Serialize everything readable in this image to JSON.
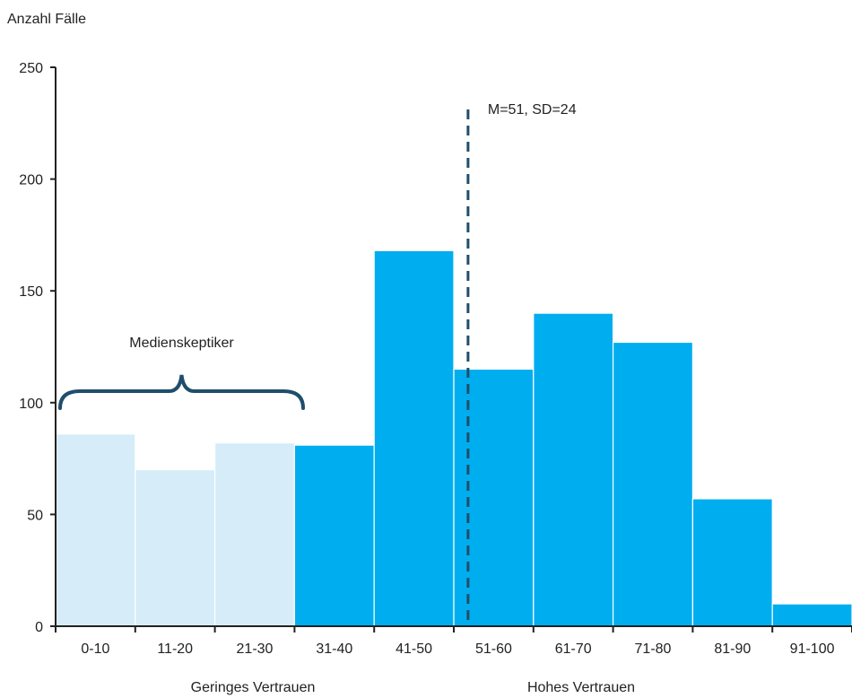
{
  "chart_data": {
    "type": "bar",
    "title": "",
    "ylabel": "Anzahl Fälle",
    "xlabel": "",
    "ylim": [
      0,
      250
    ],
    "yticks": [
      0,
      50,
      100,
      150,
      200,
      250
    ],
    "categories": [
      "0-10",
      "11-20",
      "21-30",
      "31-40",
      "41-50",
      "51-60",
      "61-70",
      "71-80",
      "81-90",
      "91-100"
    ],
    "values": [
      86,
      70,
      82,
      81,
      168,
      115,
      140,
      127,
      57,
      10
    ],
    "bar_colors": [
      "#d6ecf9",
      "#d6ecf9",
      "#d6ecf9",
      "#00aeef",
      "#00aeef",
      "#00aeef",
      "#00aeef",
      "#00aeef",
      "#00aeef",
      "#00aeef"
    ],
    "mean_line": {
      "value": 51,
      "label": "M=51, SD=24",
      "color": "#1f4e6b"
    },
    "brace": {
      "label": "Medienskeptiker",
      "from_category": "0-10",
      "to_category": "21-30",
      "color": "#1f4e6b"
    },
    "group_labels": {
      "low": "Geringes Vertrauen",
      "high": "Hohes Vertrauen"
    },
    "grid": false,
    "legend": "none"
  }
}
